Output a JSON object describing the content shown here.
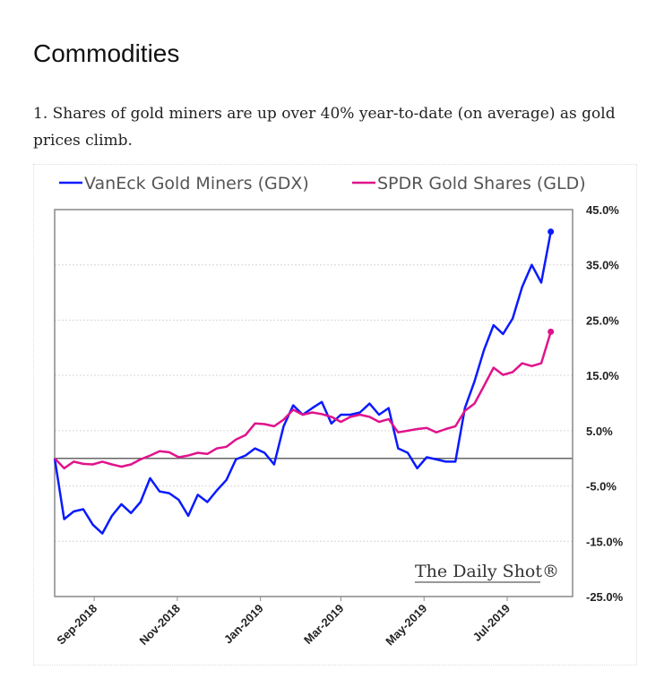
{
  "page": {
    "heading": "Commodities",
    "paragraph": "1. Shares of gold miners are up over 40% year-to-date (on average) as gold prices climb."
  },
  "chart_data": {
    "type": "line",
    "title": "",
    "xlabel": "",
    "ylabel": "",
    "watermark": "The Daily Shot®",
    "legend_position": "top",
    "grid": true,
    "ylim": [
      -25,
      45
    ],
    "xlim": [
      "2018-08-03",
      "2019-08-18"
    ],
    "y_ticks": [
      "45.0%",
      "35.0%",
      "25.0%",
      "15.0%",
      "5.0%",
      "-5.0%",
      "-15.0%",
      "-25.0%"
    ],
    "y_tick_values": [
      45,
      35,
      25,
      15,
      5,
      -5,
      -15,
      -25
    ],
    "x_ticks": [
      "Sep-2018",
      "Nov-2018",
      "Jan-2019",
      "Mar-2019",
      "May-2019",
      "Jul-2019"
    ],
    "x_tick_dates": [
      "2018-09-01",
      "2018-11-01",
      "2019-01-01",
      "2019-03-01",
      "2019-05-01",
      "2019-07-01"
    ],
    "x": [
      "2018-08-03",
      "2018-08-10",
      "2018-08-17",
      "2018-08-24",
      "2018-08-31",
      "2018-09-07",
      "2018-09-14",
      "2018-09-21",
      "2018-09-28",
      "2018-10-05",
      "2018-10-12",
      "2018-10-19",
      "2018-10-26",
      "2018-11-02",
      "2018-11-09",
      "2018-11-16",
      "2018-11-23",
      "2018-11-30",
      "2018-12-07",
      "2018-12-14",
      "2018-12-21",
      "2018-12-28",
      "2019-01-04",
      "2019-01-11",
      "2019-01-18",
      "2019-01-25",
      "2019-02-01",
      "2019-02-08",
      "2019-02-15",
      "2019-02-22",
      "2019-03-01",
      "2019-03-08",
      "2019-03-15",
      "2019-03-22",
      "2019-03-29",
      "2019-04-05",
      "2019-04-12",
      "2019-04-19",
      "2019-04-26",
      "2019-05-03",
      "2019-05-10",
      "2019-05-17",
      "2019-05-24",
      "2019-05-31",
      "2019-06-07",
      "2019-06-14",
      "2019-06-21",
      "2019-06-28",
      "2019-07-05",
      "2019-07-12",
      "2019-07-19",
      "2019-07-26",
      "2019-08-02"
    ],
    "series": [
      {
        "name": "VanEck Gold Miners (GDX)",
        "color": "#0a1aff",
        "values": [
          0,
          -11,
          -9.6,
          -9.2,
          -12,
          -13.6,
          -10.4,
          -8.3,
          -9.9,
          -7.9,
          -3.6,
          -6,
          -6.3,
          -7.5,
          -10.4,
          -6.6,
          -7.9,
          -5.8,
          -3.9,
          -0.2,
          0.5,
          1.8,
          1,
          -1.1,
          5.8,
          9.6,
          7.9,
          9.1,
          10.2,
          6.3,
          7.9,
          7.9,
          8.3,
          9.9,
          7.9,
          9.1,
          1.8,
          1,
          -1.8,
          0.2,
          -0.2,
          -0.6,
          -0.6,
          9.1,
          13.9,
          19.6,
          24.1,
          22.5,
          25.3,
          31,
          35,
          31.8,
          41
        ]
      },
      {
        "name": "SPDR Gold Shares (GLD)",
        "color": "#e0138c",
        "values": [
          0,
          -1.8,
          -0.6,
          -1,
          -1.1,
          -0.6,
          -1.1,
          -1.5,
          -1.1,
          -0.2,
          0.5,
          1.3,
          1.1,
          0.2,
          0.5,
          1,
          0.8,
          1.8,
          2.1,
          3.4,
          4.2,
          6.3,
          6.2,
          5.8,
          7,
          8.8,
          7.9,
          8.3,
          8,
          7.5,
          6.6,
          7.5,
          7.9,
          7.5,
          6.6,
          7.1,
          4.7,
          5,
          5.3,
          5.5,
          4.7,
          5.3,
          5.8,
          8.6,
          9.9,
          13.1,
          16.4,
          15.1,
          15.6,
          17.2,
          16.7,
          17.2,
          22.9
        ]
      }
    ]
  }
}
